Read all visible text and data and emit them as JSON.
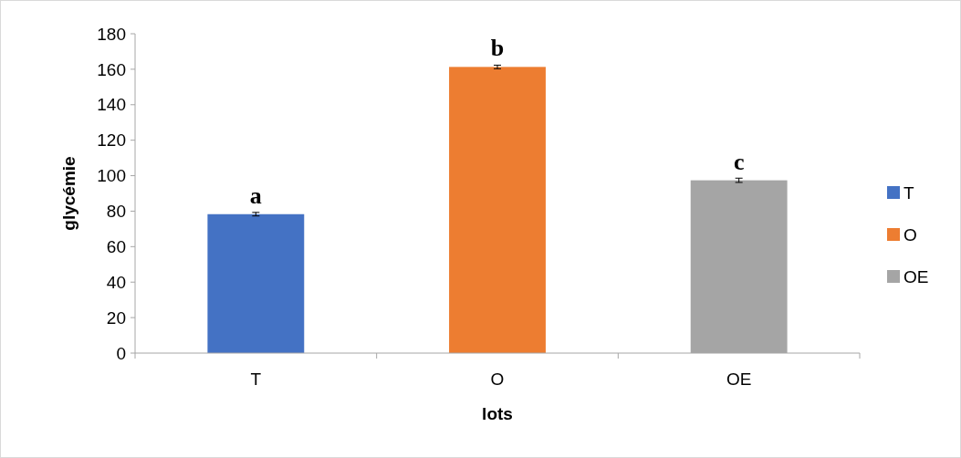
{
  "chart_data": {
    "type": "bar",
    "xlabel": "lots",
    "ylabel": "glycémie",
    "categories": [
      "T",
      "O",
      "OE"
    ],
    "stacked": true,
    "series": [
      {
        "name": "T",
        "color": "#4472c4",
        "values": [
          78.3,
          null,
          null
        ],
        "errors": [
          1,
          null,
          null
        ]
      },
      {
        "name": "O",
        "color": "#ed7d31",
        "values": [
          null,
          161.3,
          null
        ],
        "errors": [
          null,
          1,
          null
        ]
      },
      {
        "name": "OE",
        "color": "#a5a5a5",
        "values": [
          null,
          null,
          97.4
        ],
        "errors": [
          null,
          null,
          1.2
        ]
      }
    ],
    "ylim": [
      0,
      180
    ],
    "yticks": [
      0,
      20,
      40,
      60,
      80,
      100,
      120,
      140,
      160,
      180
    ],
    "grid": false,
    "legend": "right",
    "annotations": [
      {
        "text": "a",
        "x": "T",
        "y": 78.3
      },
      {
        "text": "b",
        "x": "O",
        "y": 161.3
      },
      {
        "text": "c",
        "x": "OE",
        "y": 97.4
      }
    ]
  }
}
